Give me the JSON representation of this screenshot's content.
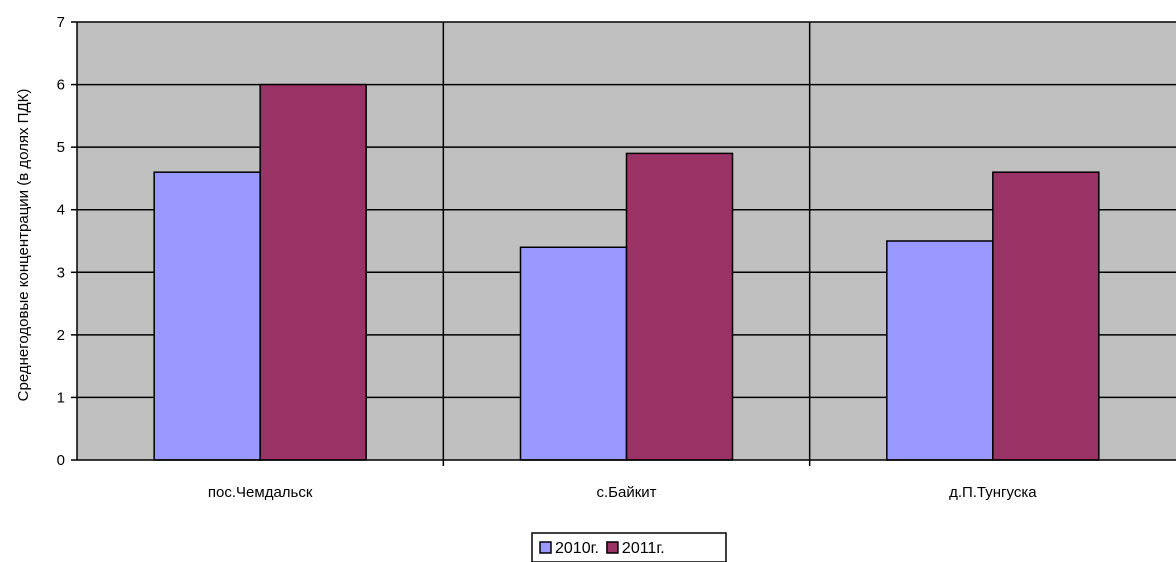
{
  "chart_data": {
    "type": "bar",
    "title": "",
    "xlabel": "",
    "ylabel": "Среднегодовые концентрации (в долях ПДК)",
    "categories": [
      "пос.Чемдальск",
      "с.Байкит",
      "д.П.Тунгуска"
    ],
    "series": [
      {
        "name": "2010г.",
        "values": [
          4.6,
          3.4,
          3.5
        ],
        "color": "#9999ff"
      },
      {
        "name": "2011г.",
        "values": [
          6.0,
          4.9,
          4.6
        ],
        "color": "#993366"
      }
    ],
    "ylim": [
      0,
      7
    ],
    "yticks": [
      "0",
      "1",
      "2",
      "3",
      "4",
      "5",
      "6",
      "7"
    ],
    "grid": true,
    "plot_background": "#c0c0c0",
    "legend_position": "bottom"
  }
}
